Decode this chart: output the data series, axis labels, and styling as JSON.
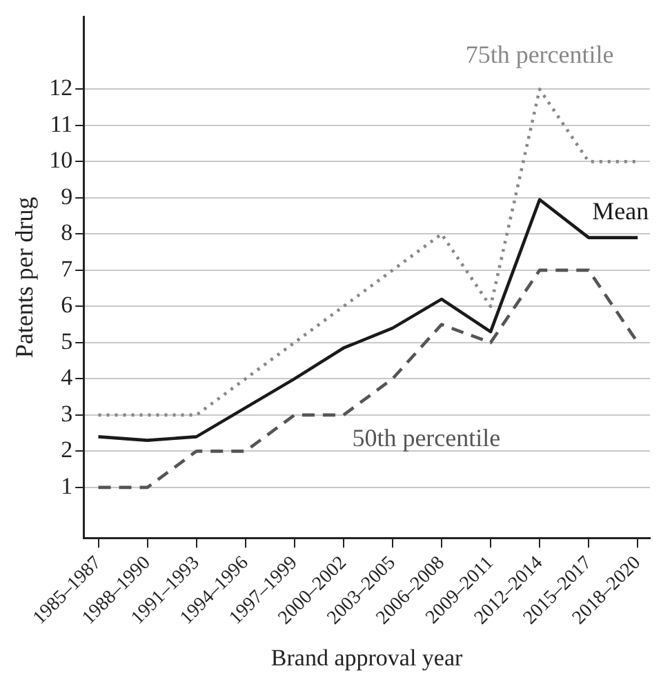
{
  "chart_data": {
    "type": "line",
    "xlabel": "Brand approval year",
    "ylabel": "Patents per drug",
    "categories": [
      "1985–1987",
      "1988–1990",
      "1991–1993",
      "1994–1996",
      "1997–1999",
      "2000–2002",
      "2003–2005",
      "2006–2008",
      "2009–2011",
      "2012–2014",
      "2015–2017",
      "2018–2020"
    ],
    "ylim": [
      -0.4,
      14
    ],
    "yticks": [
      1,
      2,
      3,
      4,
      5,
      6,
      7,
      8,
      9,
      10,
      11,
      12
    ],
    "grid": "y",
    "legend": false,
    "marker": "none",
    "series": [
      {
        "name": "75th percentile",
        "color": "#888888",
        "line_style": "dotted",
        "values": [
          3,
          3,
          3,
          4,
          5,
          6,
          7,
          8,
          6,
          12,
          10,
          10
        ]
      },
      {
        "name": "Mean",
        "color": "#1a1a1a",
        "line_style": "solid",
        "values": [
          2.4,
          2.3,
          2.4,
          3.2,
          4,
          4.85,
          5.4,
          6.2,
          5.3,
          8.95,
          7.9,
          7.9
        ]
      },
      {
        "name": "50th percentile",
        "color": "#555555",
        "line_style": "dashed",
        "values": [
          1,
          1,
          2,
          2,
          3,
          3,
          4,
          5.5,
          5,
          7,
          7,
          5
        ]
      }
    ]
  }
}
